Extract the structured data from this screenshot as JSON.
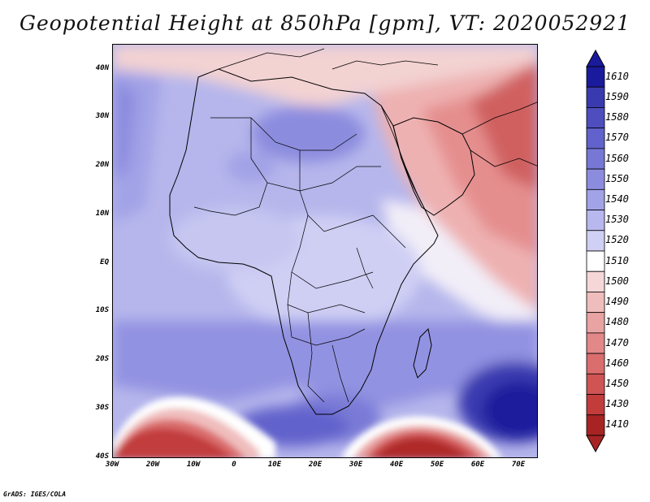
{
  "title": "Geopotential Height at 850hPa [gpm], VT: 2020052921",
  "credit": "GrADS: IGES/COLA",
  "map": {
    "variable": "Geopotential Height",
    "level": "850hPa",
    "units": "gpm",
    "valid_time": "2020052921",
    "lat_labels": [
      "40N",
      "30N",
      "20N",
      "10N",
      "EQ",
      "10S",
      "20S",
      "30S",
      "40S"
    ],
    "lon_labels": [
      "30W",
      "20W",
      "10W",
      "0",
      "10E",
      "20E",
      "30E",
      "40E",
      "50E",
      "60E",
      "70E"
    ]
  },
  "legend": {
    "labels": [
      "1610",
      "1590",
      "1580",
      "1570",
      "1560",
      "1550",
      "1540",
      "1530",
      "1520",
      "1510",
      "1500",
      "1490",
      "1480",
      "1470",
      "1460",
      "1450",
      "1430",
      "1410"
    ],
    "colors": [
      "#1a1a9c",
      "#3a3ab0",
      "#4e4ebf",
      "#6262cc",
      "#7777d6",
      "#8c8cdf",
      "#a2a2e7",
      "#b8b8ee",
      "#d0d0f4",
      "#ffffff",
      "#f6d7d7",
      "#f0bdbd",
      "#e9a3a3",
      "#e28888",
      "#da6d6d",
      "#d05454",
      "#c23c3c",
      "#a82424"
    ]
  }
}
